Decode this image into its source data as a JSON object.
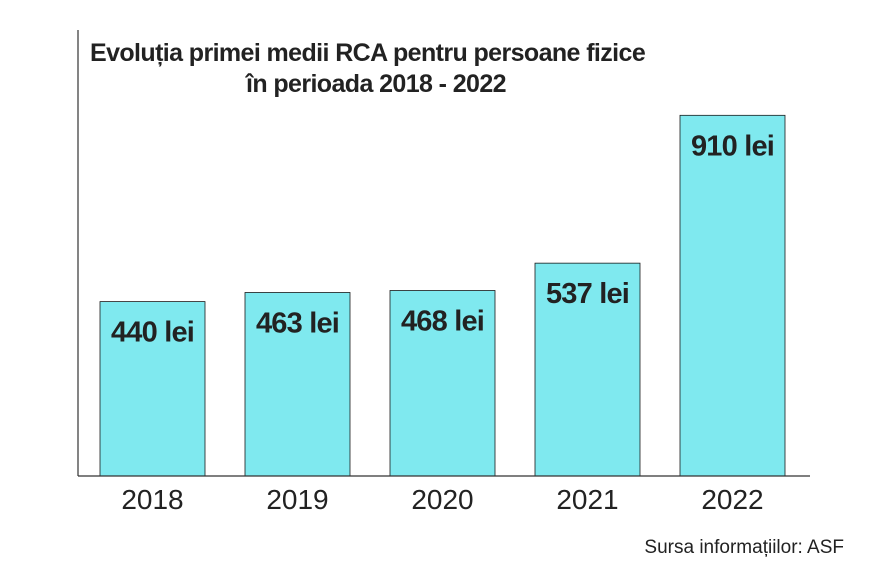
{
  "chart_data": {
    "type": "bar",
    "title_line1": "Evoluția primei medii RCA pentru persoane fizice",
    "title_line2": "în perioada 2018 - 2022",
    "categories": [
      "2018",
      "2019",
      "2020",
      "2021",
      "2022"
    ],
    "values": [
      440,
      463,
      468,
      537,
      910
    ],
    "value_labels": [
      "440 lei",
      "463 lei",
      "468 lei",
      "537 lei",
      "910 lei"
    ],
    "unit": "lei",
    "ylim": [
      0,
      1100
    ],
    "grid": false,
    "legend": "none",
    "bar_color": "#7fe9ef",
    "bar_edge_color": "#1a1a1a",
    "axis_color": "#333333",
    "label_color": "#222222"
  },
  "source": "Sursa informațiilor: ASF"
}
